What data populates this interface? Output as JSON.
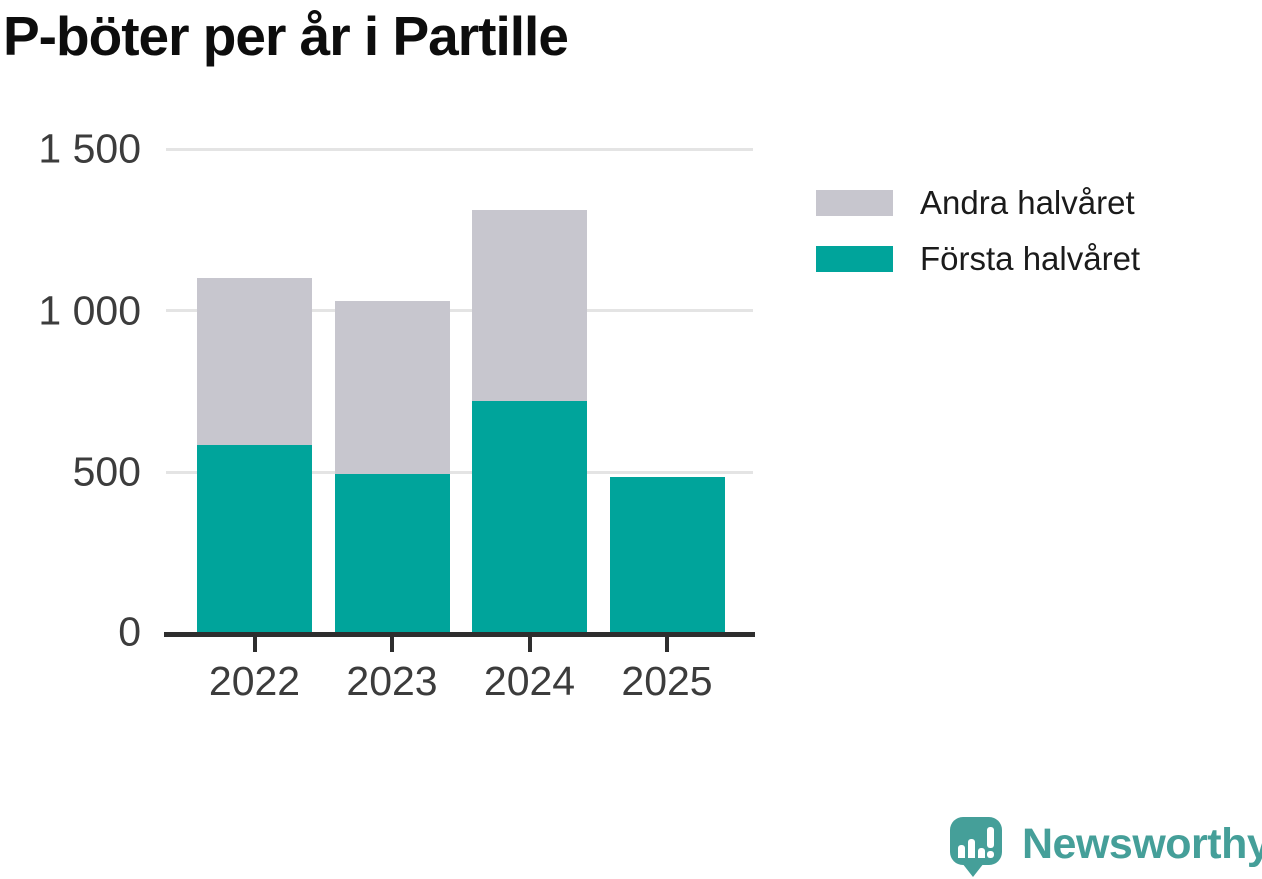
{
  "chart": {
    "title": "P-böter per år i Partille"
  },
  "chart_data": {
    "type": "bar",
    "stacked": true,
    "title": "P-böter per år i Partille",
    "categories": [
      "2022",
      "2023",
      "2024",
      "2025"
    ],
    "series": [
      {
        "name": "Första halvåret",
        "color": "#00a49b",
        "values": [
          585,
          495,
          720,
          485
        ]
      },
      {
        "name": "Andra halvåret",
        "color": "#c7c6ce",
        "values": [
          515,
          535,
          590,
          0
        ]
      }
    ],
    "totals": [
      1100,
      1030,
      1310,
      485
    ],
    "xlabel": "",
    "ylabel": "",
    "ylim": [
      0,
      1500
    ],
    "yticks": [
      0,
      500,
      1000,
      1500
    ],
    "ytick_labels": [
      "0",
      "500",
      "1 000",
      "1 500"
    ],
    "grid": true,
    "legend_position": "top-right"
  },
  "legend": {
    "items": [
      {
        "label": "Andra halvåret",
        "color": "#c7c6ce"
      },
      {
        "label": "Första halvåret",
        "color": "#00a49b"
      }
    ]
  },
  "branding": {
    "wordmark": "Newsworthy",
    "logo_color": "#459f99",
    "logo_icon": "speech-bubble-bar-chart-exclamation"
  },
  "colors": {
    "first_half": "#00a49b",
    "second_half": "#c7c6ce",
    "axis": "#2e2e2e",
    "gridline": "#e4e4e4",
    "tick_text": "#3c3c3c",
    "legend_text": "#1b1b1b",
    "title_text": "#0d0d0d",
    "background": "#ffffff"
  }
}
